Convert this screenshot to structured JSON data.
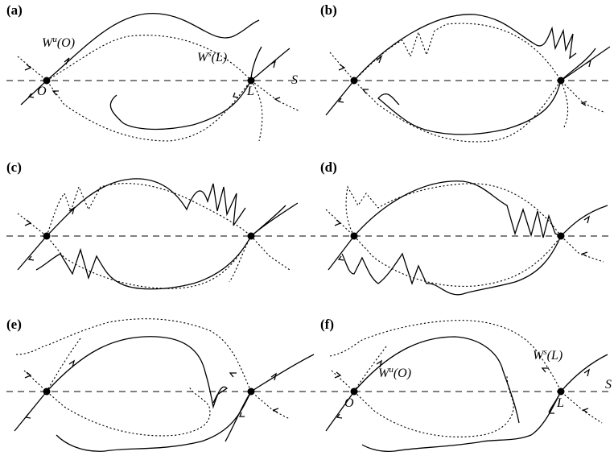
{
  "panels": [
    {
      "label": "(a)",
      "annotations": {
        "unstable": "W",
        "unstable_sup": "u",
        "unstable_arg": "(O)",
        "stable": "W",
        "stable_sup": "s",
        "stable_arg": "(L)",
        "section": "S",
        "left_point": "O",
        "right_point": "L"
      }
    },
    {
      "label": "(b)",
      "annotations": {}
    },
    {
      "label": "(c)",
      "annotations": {}
    },
    {
      "label": "(d)",
      "annotations": {}
    },
    {
      "label": "(e)",
      "annotations": {}
    },
    {
      "label": "(f)",
      "annotations": {
        "unstable": "W",
        "unstable_sup": "u",
        "unstable_arg": "(O)",
        "stable": "W",
        "stable_sup": "s",
        "stable_arg": "(L)",
        "section": "S",
        "left_point": "O",
        "right_point": "L"
      }
    }
  ]
}
